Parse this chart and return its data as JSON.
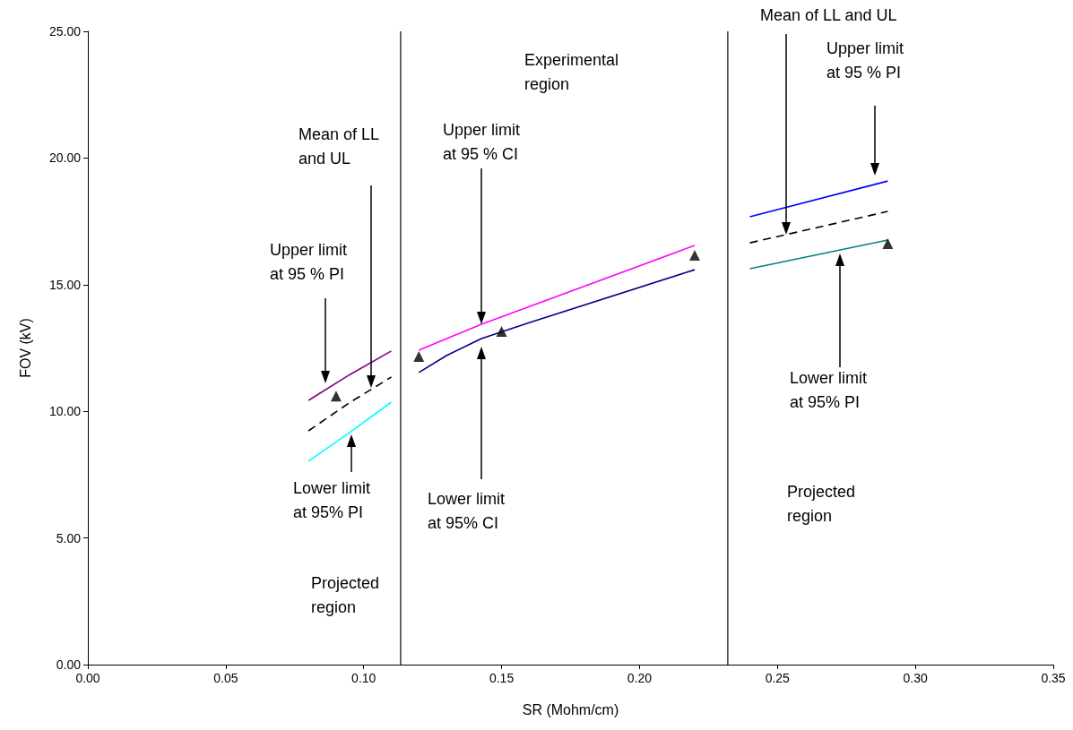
{
  "chart_data": {
    "type": "line",
    "xlabel": "SR (Mohm/cm)",
    "ylabel": "FOV (kV)",
    "xlim": [
      0,
      0.35
    ],
    "ylim": [
      0,
      25
    ],
    "xticks": [
      {
        "value": 0,
        "label": "0.00"
      },
      {
        "value": 0.05,
        "label": "0.05"
      },
      {
        "value": 0.1,
        "label": "0.10"
      },
      {
        "value": 0.15,
        "label": "0.15"
      },
      {
        "value": 0.2,
        "label": "0.20"
      },
      {
        "value": 0.25,
        "label": "0.25"
      },
      {
        "value": 0.3,
        "label": "0.30"
      },
      {
        "value": 0.35,
        "label": "0.35"
      }
    ],
    "yticks": [
      {
        "value": 0,
        "label": "0.00"
      },
      {
        "value": 5,
        "label": "5.00"
      },
      {
        "value": 10,
        "label": "10.00"
      },
      {
        "value": 15,
        "label": "15.00"
      },
      {
        "value": 20,
        "label": "20.00"
      },
      {
        "value": 25,
        "label": "25.00"
      }
    ],
    "grid": false,
    "marker": "none",
    "series": [
      {
        "color": "#800080",
        "line_style": "solid",
        "x": [
          0.08,
          0.095,
          0.11
        ],
        "values": [
          10.43,
          11.45,
          12.38
        ]
      },
      {
        "color": "#000000",
        "line_style": "dashed",
        "x": [
          0.08,
          0.095,
          0.11
        ],
        "values": [
          9.23,
          10.35,
          11.35
        ]
      },
      {
        "color": "#00ffff",
        "line_style": "solid",
        "x": [
          0.08,
          0.0949,
          0.11
        ],
        "values": [
          8.03,
          9.16,
          10.36
        ]
      },
      {
        "color": "#ff00ff",
        "line_style": "solid",
        "x": [
          0.12,
          0.1427,
          0.22
        ],
        "values": [
          12.41,
          13.44,
          16.55
        ]
      },
      {
        "color": "#000080",
        "line_style": "solid",
        "x": [
          0.12,
          0.13,
          0.1427,
          0.16,
          0.22
        ],
        "values": [
          11.53,
          12.2,
          12.87,
          13.5,
          15.59
        ]
      },
      {
        "color": "#0000ff",
        "line_style": "solid",
        "x": [
          0.24,
          0.29
        ],
        "values": [
          17.68,
          19.09
        ]
      },
      {
        "color": "#000000",
        "line_style": "dashed",
        "x": [
          0.24,
          0.29
        ],
        "values": [
          16.65,
          17.89
        ]
      },
      {
        "color": "#008080",
        "line_style": "solid",
        "x": [
          0.24,
          0.29
        ],
        "values": [
          15.63,
          16.76
        ]
      },
      {
        "type": "scatter",
        "marker": "triangle",
        "color": "#000000",
        "x": [
          0.09,
          0.12,
          0.15,
          0.22,
          0.29
        ],
        "values": [
          10.6,
          12.16,
          13.15,
          16.16,
          16.62
        ]
      }
    ],
    "ref_lines": [
      {
        "axis": "x",
        "value": 0.1134,
        "color": "#000000"
      },
      {
        "axis": "x",
        "value": 0.232,
        "color": "#000000"
      }
    ],
    "annotations": [
      "Mean of LL\nand UL",
      "Upper limit\nat 95 % PI",
      "Lower limit\nat 95% PI",
      "Projected\nregion",
      "Experimental\nregion",
      "Upper limit\nat 95 % CI",
      "Lower limit\nat 95% CI",
      "Mean of LL and UL",
      "Upper limit\nat 95 % PI",
      "Lower limit\nat 95% PI",
      "Projected\nregion"
    ]
  }
}
